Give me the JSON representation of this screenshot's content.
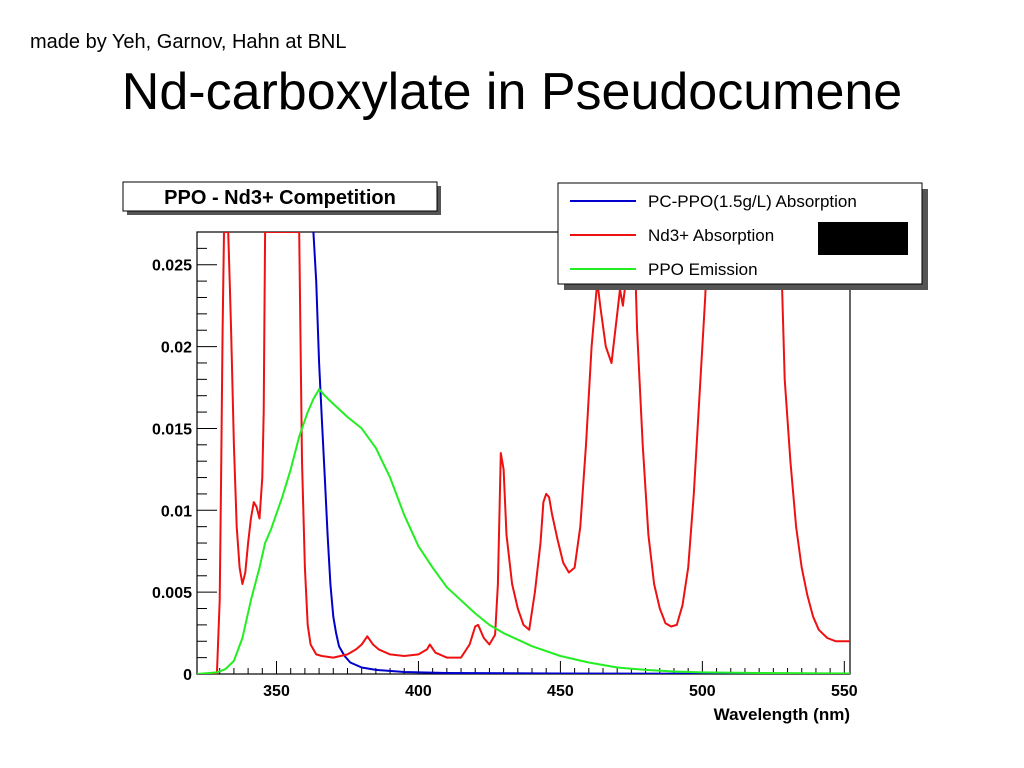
{
  "credit": "made by Yeh, Garnov, Hahn at BNL",
  "title": "Nd-carboxylate in Pseudocumene",
  "chart_data": {
    "type": "line",
    "title": "PPO - Nd3+ Competition",
    "xlabel": "Wavelength (nm)",
    "ylabel": "",
    "xlim": [
      322,
      552
    ],
    "ylim": [
      0,
      0.027
    ],
    "x_ticks": [
      "350",
      "400",
      "450",
      "500",
      "550"
    ],
    "x_tick_values": [
      350,
      400,
      450,
      500,
      550
    ],
    "y_ticks": [
      "0",
      "0.005",
      "0.01",
      "0.015",
      "0.02",
      "0.025"
    ],
    "y_tick_values": [
      0,
      0.005,
      0.01,
      0.015,
      0.02,
      0.025
    ],
    "grid": false,
    "legend_position": "top-right",
    "series": [
      {
        "name": "PC-PPO(1.5g/L) Absorption",
        "color": "#0000cc",
        "points": [
          [
            363,
            0.027
          ],
          [
            364,
            0.024
          ],
          [
            365,
            0.019
          ],
          [
            366,
            0.0155
          ],
          [
            367,
            0.012
          ],
          [
            368,
            0.0085
          ],
          [
            369,
            0.0055
          ],
          [
            370,
            0.0035
          ],
          [
            371,
            0.0025
          ],
          [
            372,
            0.0017
          ],
          [
            374,
            0.0011
          ],
          [
            376,
            0.0007
          ],
          [
            380,
            0.0004
          ],
          [
            385,
            0.00025
          ],
          [
            395,
            0.00012
          ],
          [
            410,
            6e-05
          ],
          [
            450,
            3e-05
          ],
          [
            500,
            2e-05
          ],
          [
            552,
            1e-05
          ]
        ]
      },
      {
        "name": "Nd3+ Absorption",
        "color": "#ee1111",
        "points": [
          [
            322,
            0
          ],
          [
            329,
            0
          ],
          [
            330,
            0.0045
          ],
          [
            330.5,
            0.012
          ],
          [
            331,
            0.021
          ],
          [
            331.5,
            0.027
          ],
          [
            333,
            0.027
          ],
          [
            333.5,
            0.024
          ],
          [
            334,
            0.021
          ],
          [
            335,
            0.014
          ],
          [
            336,
            0.009
          ],
          [
            337,
            0.0065
          ],
          [
            338,
            0.0055
          ],
          [
            339,
            0.0062
          ],
          [
            340,
            0.008
          ],
          [
            341,
            0.0095
          ],
          [
            342,
            0.0105
          ],
          [
            343,
            0.0102
          ],
          [
            344,
            0.0095
          ],
          [
            345,
            0.012
          ],
          [
            345.5,
            0.016
          ],
          [
            346,
            0.027
          ],
          [
            347,
            0.027
          ],
          [
            356,
            0.027
          ],
          [
            358,
            0.027
          ],
          [
            358.5,
            0.02
          ],
          [
            359,
            0.013
          ],
          [
            360,
            0.0065
          ],
          [
            361,
            0.003
          ],
          [
            362,
            0.0018
          ],
          [
            364,
            0.0012
          ],
          [
            366,
            0.0011
          ],
          [
            370,
            0.001
          ],
          [
            375,
            0.0012
          ],
          [
            378,
            0.0015
          ],
          [
            380,
            0.0018
          ],
          [
            382,
            0.0023
          ],
          [
            384,
            0.0018
          ],
          [
            386,
            0.0015
          ],
          [
            390,
            0.0012
          ],
          [
            395,
            0.0011
          ],
          [
            400,
            0.0012
          ],
          [
            403,
            0.0015
          ],
          [
            404,
            0.0018
          ],
          [
            406,
            0.0013
          ],
          [
            410,
            0.001
          ],
          [
            415,
            0.001
          ],
          [
            418,
            0.0018
          ],
          [
            420,
            0.0029
          ],
          [
            421,
            0.003
          ],
          [
            423,
            0.0022
          ],
          [
            425,
            0.0018
          ],
          [
            427,
            0.0024
          ],
          [
            428,
            0.0055
          ],
          [
            429,
            0.0135
          ],
          [
            430,
            0.0125
          ],
          [
            431,
            0.0085
          ],
          [
            433,
            0.0055
          ],
          [
            435,
            0.004
          ],
          [
            437,
            0.003
          ],
          [
            439,
            0.0027
          ],
          [
            441,
            0.005
          ],
          [
            443,
            0.008
          ],
          [
            444,
            0.0105
          ],
          [
            445,
            0.011
          ],
          [
            446,
            0.0108
          ],
          [
            447,
            0.0098
          ],
          [
            449,
            0.0082
          ],
          [
            451,
            0.0068
          ],
          [
            453,
            0.0062
          ],
          [
            455,
            0.0065
          ],
          [
            457,
            0.009
          ],
          [
            459,
            0.014
          ],
          [
            461,
            0.02
          ],
          [
            463,
            0.024
          ],
          [
            464,
            0.0225
          ],
          [
            466,
            0.02
          ],
          [
            468,
            0.019
          ],
          [
            470,
            0.022
          ],
          [
            471,
            0.0235
          ],
          [
            472,
            0.0225
          ],
          [
            473,
            0.024
          ],
          [
            474,
            0.027
          ],
          [
            476,
            0.027
          ],
          [
            477,
            0.021
          ],
          [
            479,
            0.014
          ],
          [
            481,
            0.0085
          ],
          [
            483,
            0.0055
          ],
          [
            485,
            0.004
          ],
          [
            487,
            0.0031
          ],
          [
            489,
            0.0029
          ],
          [
            491,
            0.003
          ],
          [
            493,
            0.0042
          ],
          [
            495,
            0.0065
          ],
          [
            497,
            0.011
          ],
          [
            499,
            0.017
          ],
          [
            501,
            0.023
          ],
          [
            502,
            0.027
          ],
          [
            527,
            0.027
          ],
          [
            528,
            0.024
          ],
          [
            529,
            0.018
          ],
          [
            531,
            0.013
          ],
          [
            533,
            0.009
          ],
          [
            535,
            0.0065
          ],
          [
            537,
            0.0048
          ],
          [
            539,
            0.0035
          ],
          [
            541,
            0.0027
          ],
          [
            544,
            0.0022
          ],
          [
            547,
            0.002
          ],
          [
            552,
            0.002
          ]
        ]
      },
      {
        "name": "PPO Emission",
        "color": "#22ee22",
        "points": [
          [
            322,
            0
          ],
          [
            329,
            0.0001
          ],
          [
            332,
            0.0003
          ],
          [
            335,
            0.0008
          ],
          [
            338,
            0.0022
          ],
          [
            341,
            0.0045
          ],
          [
            344,
            0.0065
          ],
          [
            346,
            0.008
          ],
          [
            348,
            0.0088
          ],
          [
            350,
            0.0098
          ],
          [
            352,
            0.0108
          ],
          [
            355,
            0.0125
          ],
          [
            358,
            0.0145
          ],
          [
            361,
            0.016
          ],
          [
            363,
            0.0168
          ],
          [
            365,
            0.0174
          ],
          [
            367,
            0.017
          ],
          [
            370,
            0.0165
          ],
          [
            375,
            0.0157
          ],
          [
            380,
            0.015
          ],
          [
            385,
            0.0138
          ],
          [
            390,
            0.012
          ],
          [
            395,
            0.0097
          ],
          [
            400,
            0.0078
          ],
          [
            405,
            0.0065
          ],
          [
            410,
            0.0053
          ],
          [
            415,
            0.0045
          ],
          [
            420,
            0.0037
          ],
          [
            425,
            0.003
          ],
          [
            430,
            0.0025
          ],
          [
            440,
            0.0017
          ],
          [
            450,
            0.0011
          ],
          [
            460,
            0.0007
          ],
          [
            470,
            0.0004
          ],
          [
            480,
            0.00025
          ],
          [
            490,
            0.00015
          ],
          [
            500,
            0.0001
          ],
          [
            520,
            6e-05
          ],
          [
            552,
            3e-05
          ]
        ]
      }
    ]
  }
}
